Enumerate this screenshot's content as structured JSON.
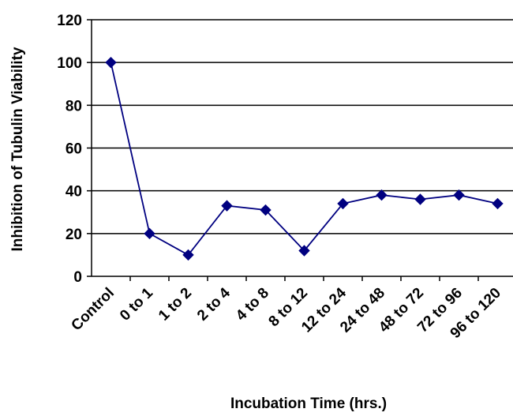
{
  "chart_data": {
    "type": "line",
    "title": "",
    "xlabel": "Incubation Time (hrs.)",
    "ylabel": "Inhibition of Tubulin Viability",
    "ylim": [
      0,
      120
    ],
    "yticks": [
      0,
      20,
      40,
      60,
      80,
      100,
      120
    ],
    "categories": [
      "Control",
      "0 to 1",
      "1 to 2",
      "2 to 4",
      "4 to 8",
      "8 to 12",
      "12 to 24",
      "24 to 48",
      "48 to 72",
      "72 to 96",
      "96 to 120"
    ],
    "series": [
      {
        "values": [
          100,
          20,
          10,
          33,
          31,
          12,
          34,
          38,
          36,
          38,
          34
        ],
        "color": "#000080",
        "marker": "diamond"
      }
    ],
    "grid": true,
    "legend": "none"
  }
}
